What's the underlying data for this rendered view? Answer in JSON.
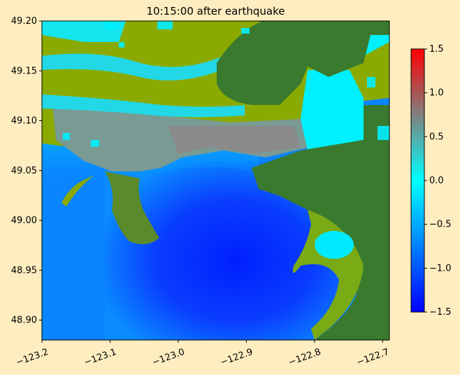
{
  "title": "10:15:00 after earthquake",
  "map": {
    "xlim": [
      -123.2,
      -122.69
    ],
    "ylim": [
      48.88,
      49.2
    ],
    "x_ticks": [
      {
        "value": -123.2,
        "label": "−123.2"
      },
      {
        "value": -123.1,
        "label": "−123.1"
      },
      {
        "value": -123.0,
        "label": "−123.0"
      },
      {
        "value": -122.9,
        "label": "−122.9"
      },
      {
        "value": -122.8,
        "label": "−122.8"
      },
      {
        "value": -122.7,
        "label": "−122.7"
      }
    ],
    "y_ticks": [
      {
        "value": 49.2,
        "label": "49.20"
      },
      {
        "value": 49.15,
        "label": "49.15"
      },
      {
        "value": 49.1,
        "label": "49.10"
      },
      {
        "value": 49.05,
        "label": "49.05"
      },
      {
        "value": 49.0,
        "label": "49.00"
      },
      {
        "value": 48.95,
        "label": "48.95"
      },
      {
        "value": 48.9,
        "label": "48.90"
      }
    ],
    "colors": {
      "land_low": "#8aaa00",
      "land_high": "#3a7a2e",
      "flooded": "#00f0ff",
      "deep_water": "#0a2cff",
      "shallow_water": "#0090ff"
    }
  },
  "colorbar": {
    "range": [
      -1.5,
      1.5
    ],
    "ticks": [
      {
        "value": 1.5,
        "label": "1.5"
      },
      {
        "value": 1.0,
        "label": "1.0"
      },
      {
        "value": 0.5,
        "label": "0.5"
      },
      {
        "value": 0.0,
        "label": "0.0"
      },
      {
        "value": -0.5,
        "label": "−0.5"
      },
      {
        "value": -1.0,
        "label": "−1.0"
      },
      {
        "value": -1.5,
        "label": "−1.5"
      }
    ],
    "colors": [
      "#0000ff",
      "#00ffff",
      "#808080",
      "#ff0000"
    ]
  }
}
